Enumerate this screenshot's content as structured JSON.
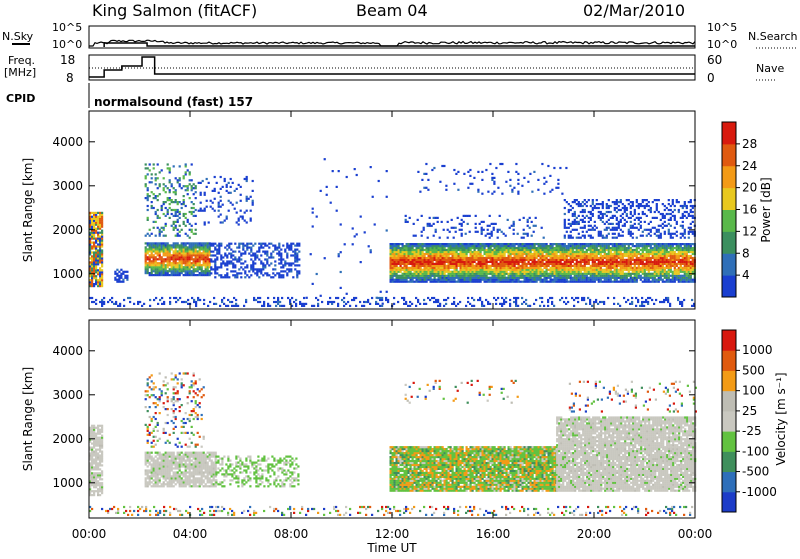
{
  "header": {
    "station": "King Salmon (fitACF)",
    "beam": "Beam 04",
    "date": "02/Mar/2010"
  },
  "strip": {
    "nsky_label": "N.Sky",
    "nsearch_label": "N.Search",
    "top_left_ticks": [
      "10^5",
      "10^0"
    ],
    "top_right_ticks": [
      "10^5",
      "10^0"
    ],
    "freq_label_line1": "Freq.",
    "freq_label_line2": "[MHz]",
    "freq_ticks": [
      "18",
      "8"
    ],
    "nave_label": "Nave",
    "nave_ticks": [
      "60",
      "0"
    ],
    "cpid_label": "CPID",
    "cpid_value": "normalsound (fast) 157"
  },
  "colors": {
    "power": [
      "#1a3fd0",
      "#2f6fb8",
      "#3b8f5f",
      "#59b84a",
      "#e8c81f",
      "#f39a16",
      "#e05a10",
      "#d81a0e"
    ],
    "velocity": [
      "#1c3cc8",
      "#2e6fba",
      "#3f8f5c",
      "#62c240",
      "#c9c8c0",
      "#bebdb4",
      "#f39b16",
      "#e05a0e",
      "#d8180e"
    ]
  },
  "chart_data": [
    {
      "type": "heatmap",
      "panel": "power",
      "ylabel": "Slant Range [km]",
      "xlabel": "Time UT",
      "xticks": [
        "00:00",
        "04:00",
        "08:00",
        "12:00",
        "16:00",
        "20:00",
        "00:00"
      ],
      "yticks": [
        1000,
        2000,
        3000,
        4000
      ],
      "ylim": [
        200,
        4700
      ],
      "xlim_hours": [
        0,
        24
      ],
      "colorbar_label": "Power [dB]",
      "colorbar_ticks": [
        4,
        8,
        12,
        16,
        20,
        24,
        28
      ]
    },
    {
      "type": "heatmap",
      "panel": "velocity",
      "ylabel": "Slant Range [km]",
      "xlabel": "Time UT",
      "xticks": [
        "00:00",
        "04:00",
        "08:00",
        "12:00",
        "16:00",
        "20:00",
        "00:00"
      ],
      "yticks": [
        1000,
        2000,
        3000,
        4000
      ],
      "ylim": [
        200,
        4700
      ],
      "xlim_hours": [
        0,
        24
      ],
      "colorbar_label": "Velocity [m s⁻¹]",
      "colorbar_ticks": [
        1000,
        500,
        100,
        25,
        -25,
        -100,
        -500,
        -1000
      ]
    }
  ],
  "axes": {
    "xlabel": "Time UT",
    "xticks": [
      "00:00",
      "04:00",
      "08:00",
      "12:00",
      "16:00",
      "20:00",
      "00:00"
    ]
  }
}
